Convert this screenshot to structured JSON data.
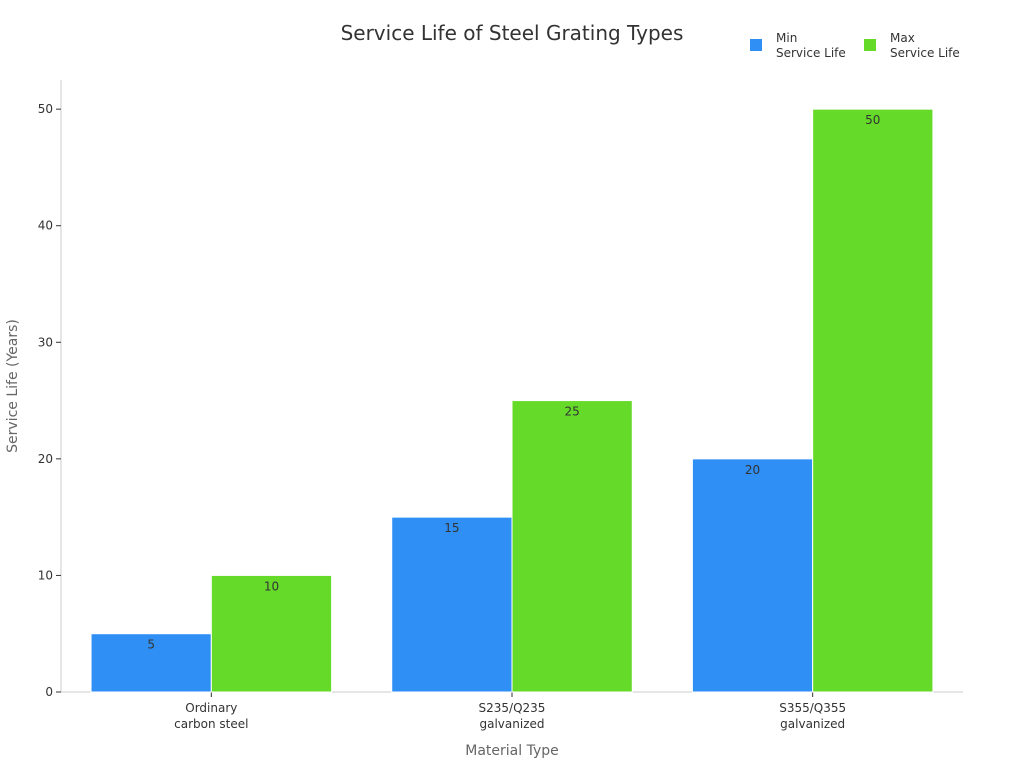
{
  "chart_data": {
    "type": "bar",
    "title": "Service Life of Steel Grating Types",
    "xlabel": "Material Type",
    "ylabel": "Service Life (Years)",
    "categories": [
      [
        "Ordinary",
        "carbon steel"
      ],
      [
        "S235/Q235",
        "galvanized"
      ],
      [
        "S355/Q355",
        "galvanized"
      ]
    ],
    "series": [
      {
        "name": [
          "Min",
          "Service Life"
        ],
        "color": "#2f8ff5",
        "values": [
          5,
          15,
          20
        ]
      },
      {
        "name": [
          "Max",
          "Service Life"
        ],
        "color": "#66da29",
        "values": [
          10,
          25,
          50
        ]
      }
    ],
    "ylim": [
      0,
      52.5
    ],
    "yticks": [
      0,
      10,
      20,
      30,
      40,
      50
    ],
    "grid": false,
    "legend_position": "top-right",
    "data_labels": true
  }
}
